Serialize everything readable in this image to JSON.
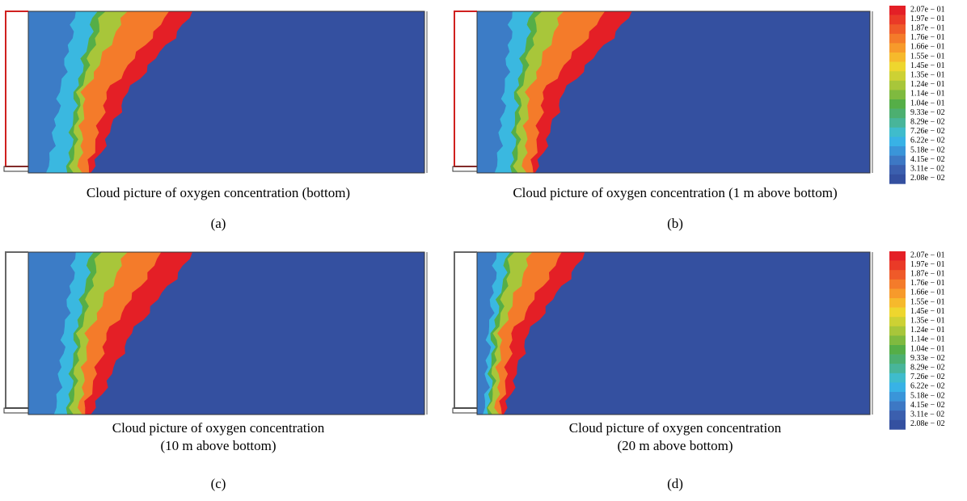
{
  "panels": [
    {
      "caption": [
        "Cloud picture of oxygen concentration (bottom)"
      ],
      "label": "(a)"
    },
    {
      "caption": [
        "Cloud picture of oxygen concentration (1 m above bottom)"
      ],
      "label": "(b)"
    },
    {
      "caption": [
        "Cloud picture of oxygen concentration",
        "(10 m above bottom)"
      ],
      "label": "(c)"
    },
    {
      "caption": [
        "Cloud picture of oxygen concentration",
        "(20 m above bottom)"
      ],
      "label": "(d)"
    }
  ],
  "colorbars": [
    {
      "labels": [
        "2.07e − 01",
        "1.97e − 01",
        "1.87e − 01",
        "1.76e − 01",
        "1.66e − 01",
        "1.55e − 01",
        "1.45e − 01",
        "1.35e − 01",
        "1.24e − 01",
        "1.14e − 01",
        "1.04e − 01",
        "9.33e − 02",
        "8.29e − 02",
        "7.26e − 02",
        "6.22e − 02",
        "5.18e − 02",
        "4.15e − 02",
        "3.11e − 02",
        "2.08e − 02"
      ]
    },
    {
      "labels": [
        "2.07e − 01",
        "1.97e − 01",
        "1.87e − 01",
        "1.76e − 01",
        "1.66e − 01",
        "1.55e − 01",
        "1.45e − 01",
        "1.35e − 01",
        "1.24e − 01",
        "1.14e − 01",
        "1.04e − 01",
        "9.33e − 02",
        "8.29e − 02",
        "7.26e − 02",
        "6.22e − 02",
        "5.18e − 02",
        "4.15e − 02",
        "3.11e − 02",
        "2.08e − 02"
      ]
    }
  ],
  "colorbar_colors": [
    "#e41f26",
    "#ea3a27",
    "#ef5a29",
    "#f47b2a",
    "#f79a2b",
    "#f6b92c",
    "#eed62e",
    "#cdd134",
    "#a8c63a",
    "#7fba3f",
    "#55ae47",
    "#4caf70",
    "#48b59a",
    "#3fbccc",
    "#38b2e6",
    "#3a95d9",
    "#3d78c4",
    "#3b5fae",
    "#3450a0"
  ]
}
